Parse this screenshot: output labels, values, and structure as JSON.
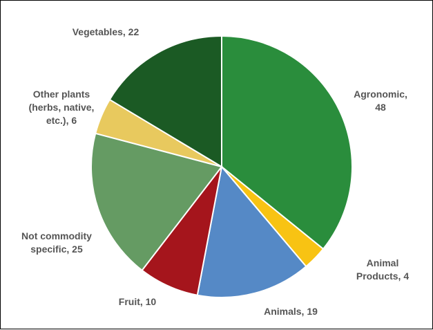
{
  "chart_data": {
    "type": "pie",
    "title": "",
    "slices": [
      {
        "label": "Agronomic, 48",
        "category": "Agronomic",
        "value": 48,
        "color": "#2a8d3c"
      },
      {
        "label": "Animal Products, 4",
        "category": "Animal Products",
        "value": 4,
        "color": "#f8c313"
      },
      {
        "label": "Animals, 19",
        "category": "Animals",
        "value": 19,
        "color": "#5589c6"
      },
      {
        "label": "Fruit, 10",
        "category": "Fruit",
        "value": 10,
        "color": "#a5151c"
      },
      {
        "label": "Not commodity specific, 25",
        "category": "Not commodity specific",
        "value": 25,
        "color": "#659b63"
      },
      {
        "label": "Other plants (herbs, native, etc.), 6",
        "category": "Other plants (herbs, native, etc.)",
        "value": 6,
        "color": "#e8c95e"
      },
      {
        "label": "Vegetables, 22",
        "category": "Vegetables",
        "value": 22,
        "color": "#1b5a24"
      }
    ],
    "start_angle": "12 o'clock",
    "direction": "clockwise",
    "legend": "none"
  }
}
